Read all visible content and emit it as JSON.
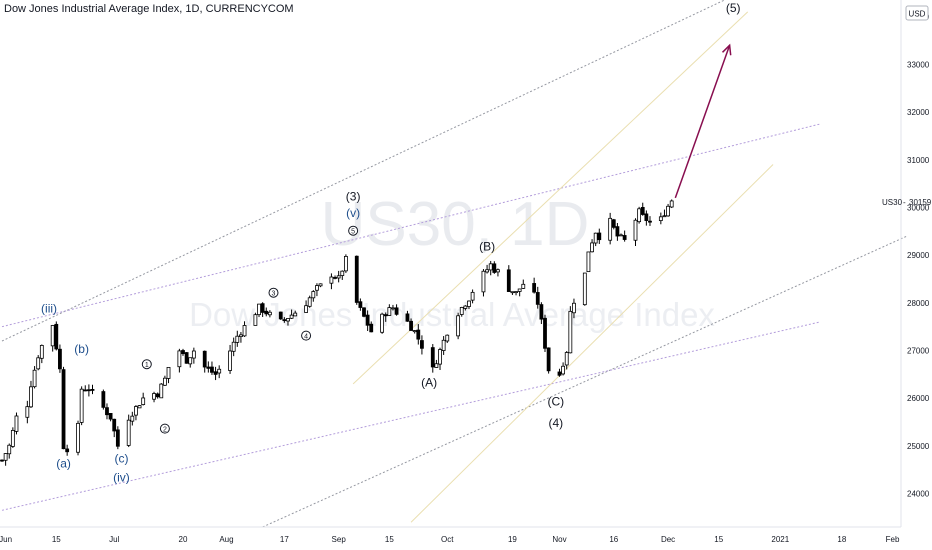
{
  "header": {
    "title": "Dow Jones Industrial Average Index, 1D, CURRENCYCOM"
  },
  "currency_badge": "USD",
  "watermark": {
    "symbol": "US30, 1D",
    "name": "Dow Jones Industrial Average Index"
  },
  "price_label": {
    "symbol": "US30",
    "value": "30159",
    "color": "#131722"
  },
  "colors": {
    "up": "#ffffff",
    "down": "#000000",
    "arrow": "#880e4f",
    "channel": "#9598a1",
    "purple_channel": "#b39ddb",
    "yellow_line": "#e8dcaa"
  },
  "chart_data": {
    "type": "candlestick",
    "y_axis": {
      "min": 23300,
      "max": 34350,
      "ticks": [
        24000,
        25000,
        26000,
        27000,
        28000,
        29000,
        30000,
        31000,
        32000,
        33000,
        34000
      ]
    },
    "x_axis": {
      "ticks": [
        {
          "label": "Jun",
          "day": 1
        },
        {
          "label": "15",
          "day": 15
        },
        {
          "label": "Jul",
          "day": 31
        },
        {
          "label": "20",
          "day": 50
        },
        {
          "label": "Aug",
          "day": 62
        },
        {
          "label": "17",
          "day": 78
        },
        {
          "label": "Sep",
          "day": 93
        },
        {
          "label": "15",
          "day": 107
        },
        {
          "label": "Oct",
          "day": 123
        },
        {
          "label": "19",
          "day": 141
        },
        {
          "label": "Nov",
          "day": 154
        },
        {
          "label": "16",
          "day": 169
        },
        {
          "label": "Dec",
          "day": 184
        },
        {
          "label": "15",
          "day": 198
        },
        {
          "label": "2021",
          "day": 215
        },
        {
          "label": "18",
          "day": 232
        },
        {
          "label": "Feb",
          "day": 246
        }
      ]
    },
    "waypoints": [
      [
        0,
        24700
      ],
      [
        2,
        25000
      ],
      [
        4,
        25600
      ],
      [
        6,
        25450
      ],
      [
        8,
        26300
      ],
      [
        10,
        26900
      ],
      [
        12,
        27300
      ],
      [
        14,
        27550
      ],
      [
        16,
        26600
      ],
      [
        17,
        25000
      ],
      [
        19,
        24900
      ],
      [
        21,
        25400
      ],
      [
        22,
        26200
      ],
      [
        24,
        26200
      ],
      [
        26,
        26000
      ],
      [
        28,
        25800
      ],
      [
        30,
        25600
      ],
      [
        32,
        25000
      ],
      [
        33,
        25100
      ],
      [
        35,
        25600
      ],
      [
        37,
        25800
      ],
      [
        39,
        26000
      ],
      [
        41,
        26100
      ],
      [
        43,
        26100
      ],
      [
        45,
        26400
      ],
      [
        47,
        26900
      ],
      [
        49,
        27000
      ],
      [
        51,
        26800
      ],
      [
        53,
        27000
      ],
      [
        55,
        26700
      ],
      [
        57,
        26600
      ],
      [
        59,
        26500
      ],
      [
        61,
        26700
      ],
      [
        63,
        27000
      ],
      [
        65,
        27300
      ],
      [
        67,
        27500
      ],
      [
        69,
        27700
      ],
      [
        71,
        27900
      ],
      [
        73,
        27800
      ],
      [
        75,
        27700
      ],
      [
        77,
        27600
      ],
      [
        79,
        27700
      ],
      [
        81,
        27800
      ],
      [
        83,
        27900
      ],
      [
        85,
        28100
      ],
      [
        87,
        28300
      ],
      [
        89,
        28400
      ],
      [
        91,
        28600
      ],
      [
        93,
        28500
      ],
      [
        95,
        28900
      ],
      [
        96,
        28300
      ],
      [
        98,
        28000
      ],
      [
        100,
        27700
      ],
      [
        102,
        27400
      ],
      [
        104,
        27600
      ],
      [
        106,
        27800
      ],
      [
        108,
        27900
      ],
      [
        110,
        27700
      ],
      [
        112,
        27600
      ],
      [
        114,
        27400
      ],
      [
        116,
        27100
      ],
      [
        118,
        26800
      ],
      [
        119,
        26600
      ],
      [
        121,
        27000
      ],
      [
        123,
        27400
      ],
      [
        125,
        27700
      ],
      [
        127,
        27900
      ],
      [
        129,
        28100
      ],
      [
        131,
        28400
      ],
      [
        133,
        28600
      ],
      [
        135,
        28800
      ],
      [
        136,
        28700
      ],
      [
        138,
        28600
      ],
      [
        140,
        28300
      ],
      [
        142,
        28200
      ],
      [
        144,
        28400
      ],
      [
        146,
        28300
      ],
      [
        148,
        28000
      ],
      [
        149,
        27600
      ],
      [
        151,
        26600
      ],
      [
        152,
        26400
      ],
      [
        154,
        26500
      ],
      [
        156,
        27000
      ],
      [
        157,
        27800
      ],
      [
        159,
        28300
      ],
      [
        161,
        28600
      ],
      [
        162,
        29100
      ],
      [
        164,
        29500
      ],
      [
        166,
        29300
      ],
      [
        168,
        29700
      ],
      [
        170,
        29400
      ],
      [
        172,
        29300
      ],
      [
        174,
        29600
      ],
      [
        176,
        29900
      ],
      [
        177,
        29800
      ],
      [
        179,
        29700
      ],
      [
        181,
        29600
      ],
      [
        183,
        29900
      ],
      [
        185,
        30159
      ]
    ],
    "wave_labels": [
      {
        "text": "(iii)",
        "day": 13,
        "price": 27800,
        "color": "#1e4e8c"
      },
      {
        "text": "(b)",
        "day": 22,
        "price": 26950,
        "color": "#1e4e8c"
      },
      {
        "text": "(a)",
        "day": 17,
        "price": 24550,
        "color": "#1e4e8c"
      },
      {
        "text": "(c)",
        "day": 33,
        "price": 24650,
        "color": "#1e4e8c"
      },
      {
        "text": "(iv)",
        "day": 33,
        "price": 24250,
        "color": "#1e4e8c"
      },
      {
        "text": "1",
        "day": 40,
        "price": 26650,
        "color": "#131722",
        "circled": true
      },
      {
        "text": "2",
        "day": 45,
        "price": 25300,
        "color": "#131722",
        "circled": true
      },
      {
        "text": "3",
        "day": 75,
        "price": 28150,
        "color": "#131722",
        "circled": true
      },
      {
        "text": "4",
        "day": 84,
        "price": 27250,
        "color": "#131722",
        "circled": true
      },
      {
        "text": "5",
        "day": 97,
        "price": 29450,
        "color": "#131722",
        "circled": true
      },
      {
        "text": "(v)",
        "day": 97,
        "price": 29800,
        "color": "#1e4e8c"
      },
      {
        "text": "(3)",
        "day": 97,
        "price": 30150,
        "color": "#131722"
      },
      {
        "text": "(A)",
        "day": 118,
        "price": 26250,
        "color": "#131722"
      },
      {
        "text": "(B)",
        "day": 134,
        "price": 29100,
        "color": "#131722"
      },
      {
        "text": "(C)",
        "day": 153,
        "price": 25850,
        "color": "#131722"
      },
      {
        "text": "(4)",
        "day": 153,
        "price": 25400,
        "color": "#131722"
      },
      {
        "text": "(5)",
        "day": 202,
        "price": 34100,
        "color": "#131722"
      }
    ],
    "arrow": {
      "from": {
        "day": 186,
        "price": 30200
      },
      "to": {
        "day": 201,
        "price": 33400
      }
    },
    "trend_lines": [
      {
        "name": "upper-channel",
        "from": {
          "day": 0,
          "price": 27200
        },
        "to": {
          "day": 201,
          "price": 34400
        },
        "style": "dotted",
        "color": "#9598a1"
      },
      {
        "name": "lower-channel",
        "from": {
          "day": 72,
          "price": 23300
        },
        "to": {
          "day": 250,
          "price": 29400
        },
        "style": "dotted",
        "color": "#9598a1"
      },
      {
        "name": "upper-purple",
        "from": {
          "day": 0,
          "price": 27500
        },
        "to": {
          "day": 226,
          "price": 31750
        },
        "style": "dotted",
        "color": "#b39ddb"
      },
      {
        "name": "lower-purple",
        "from": {
          "day": 0,
          "price": 23650
        },
        "to": {
          "day": 226,
          "price": 27600
        },
        "style": "dotted",
        "color": "#b39ddb"
      },
      {
        "name": "yellow-upper",
        "from": {
          "day": 97,
          "price": 26300
        },
        "to": {
          "day": 206,
          "price": 34100
        },
        "style": "solid",
        "color": "#eadfb0"
      },
      {
        "name": "yellow-lower",
        "from": {
          "day": 113,
          "price": 23400
        },
        "to": {
          "day": 213,
          "price": 30900
        },
        "style": "solid",
        "color": "#eadfb0"
      }
    ]
  }
}
